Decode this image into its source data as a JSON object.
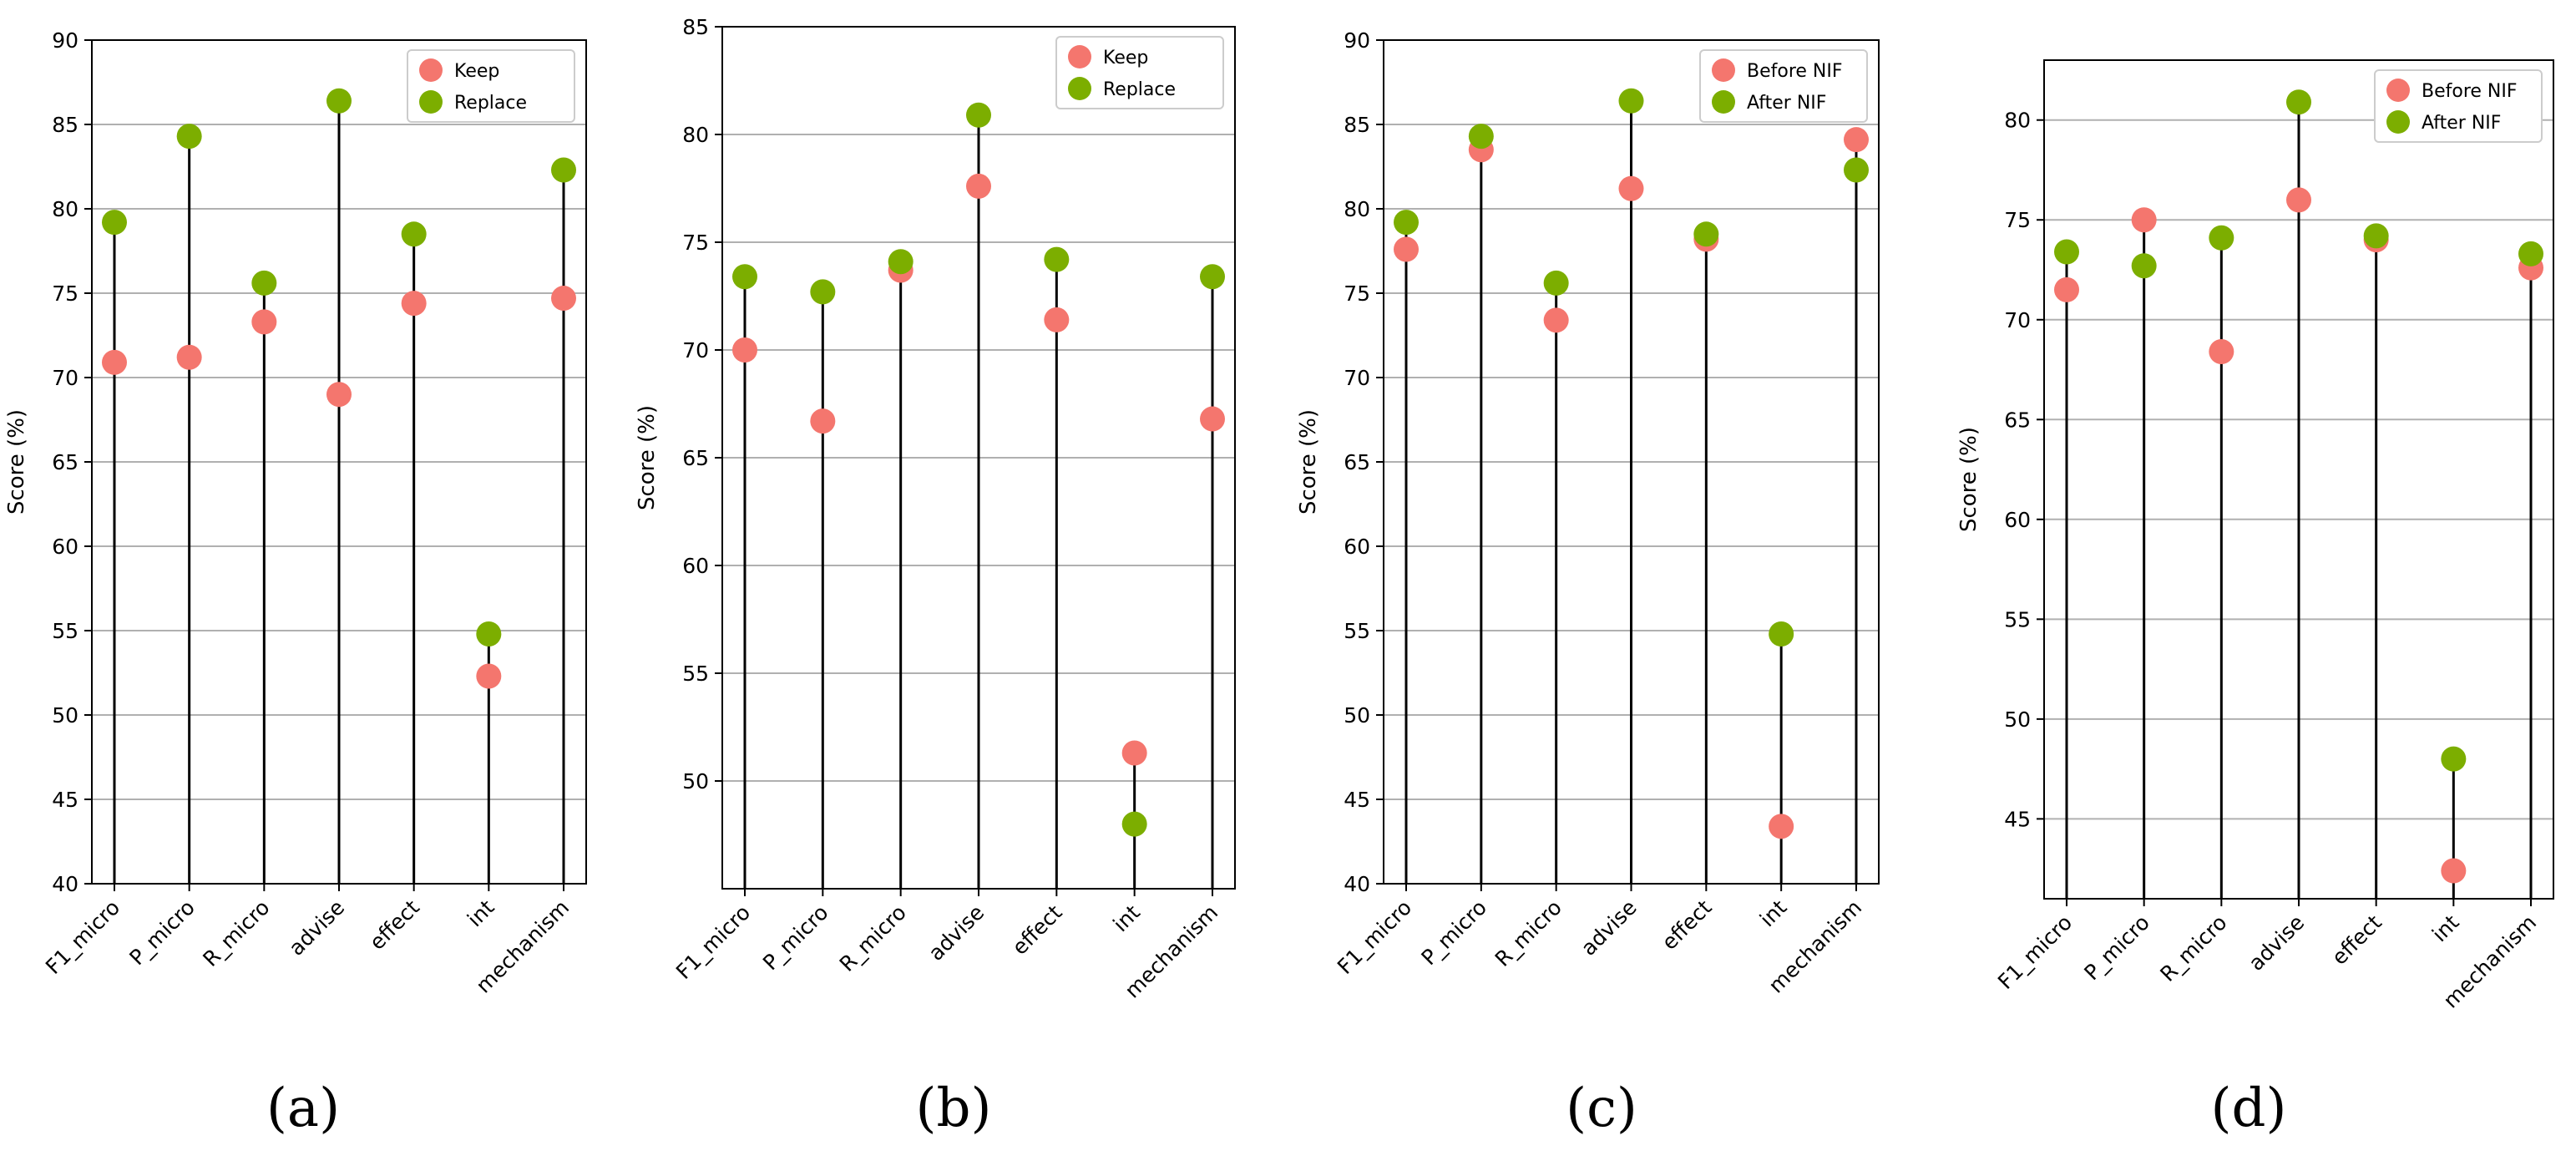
{
  "chart_data": [
    {
      "type": "scatter",
      "subtype": "lollipop",
      "panel_label": "(a)",
      "ylabel": "Score (%)",
      "ylim": [
        40,
        90
      ],
      "yticks": [
        "40",
        "45",
        "50",
        "55",
        "60",
        "65",
        "70",
        "75",
        "80",
        "85",
        "90"
      ],
      "grid": "horizontal",
      "legend_position": "top-right",
      "categories": [
        "F1_micro",
        "P_micro",
        "R_micro",
        "advise",
        "effect",
        "int",
        "mechanism"
      ],
      "series": [
        {
          "name": "Keep",
          "color": "#f4766e",
          "values": [
            70.9,
            71.2,
            73.3,
            69.0,
            74.4,
            52.3,
            74.7
          ]
        },
        {
          "name": "Replace",
          "color": "#7cae00",
          "values": [
            79.2,
            84.3,
            75.6,
            86.4,
            78.5,
            54.8,
            82.3
          ]
        }
      ]
    },
    {
      "type": "scatter",
      "subtype": "lollipop",
      "panel_label": "(b)",
      "ylabel": "Score (%)",
      "ylim": [
        45,
        85
      ],
      "yticks": [
        "50",
        "55",
        "60",
        "65",
        "70",
        "75",
        "80",
        "85"
      ],
      "grid": "horizontal",
      "legend_position": "top-right",
      "categories": [
        "F1_micro",
        "P_micro",
        "R_micro",
        "advise",
        "effect",
        "int",
        "mechanism"
      ],
      "series": [
        {
          "name": "Keep",
          "color": "#f4766e",
          "values": [
            70.0,
            66.7,
            73.7,
            77.6,
            71.4,
            51.3,
            66.8
          ]
        },
        {
          "name": "Replace",
          "color": "#7cae00",
          "values": [
            73.4,
            72.7,
            74.1,
            80.9,
            74.2,
            48.0,
            73.4
          ]
        }
      ]
    },
    {
      "type": "scatter",
      "subtype": "lollipop",
      "panel_label": "(c)",
      "ylabel": "Score (%)",
      "ylim": [
        40,
        90
      ],
      "yticks": [
        "40",
        "45",
        "50",
        "55",
        "60",
        "65",
        "70",
        "75",
        "80",
        "85",
        "90"
      ],
      "grid": "horizontal",
      "legend_position": "top-right",
      "categories": [
        "F1_micro",
        "P_micro",
        "R_micro",
        "advise",
        "effect",
        "int",
        "mechanism"
      ],
      "series": [
        {
          "name": "Before NIF",
          "color": "#f4766e",
          "values": [
            77.6,
            83.5,
            73.4,
            81.2,
            78.2,
            43.4,
            84.1
          ]
        },
        {
          "name": "After NIF",
          "color": "#7cae00",
          "values": [
            79.2,
            84.3,
            75.6,
            86.4,
            78.5,
            54.8,
            82.3
          ]
        }
      ]
    },
    {
      "type": "scatter",
      "subtype": "lollipop",
      "panel_label": "(d)",
      "ylabel": "Score (%)",
      "ylim": [
        41,
        83
      ],
      "yticks": [
        "45",
        "50",
        "55",
        "60",
        "65",
        "70",
        "75",
        "80"
      ],
      "grid": "horizontal",
      "legend_position": "top-right",
      "categories": [
        "F1_micro",
        "P_micro",
        "R_micro",
        "advise",
        "effect",
        "int",
        "mechanism"
      ],
      "series": [
        {
          "name": "Before NIF",
          "color": "#f4766e",
          "values": [
            71.5,
            75.0,
            68.4,
            76.0,
            74.0,
            42.4,
            72.6
          ]
        },
        {
          "name": "After NIF",
          "color": "#7cae00",
          "values": [
            73.4,
            72.7,
            74.1,
            80.9,
            74.2,
            48.0,
            73.3
          ]
        }
      ]
    }
  ]
}
